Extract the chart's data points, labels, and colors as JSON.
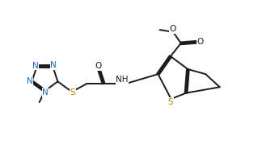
{
  "bg": "#ffffff",
  "lc": "#1a1a1a",
  "nc": "#1a6abf",
  "sc": "#b89000",
  "lw": 1.4,
  "fs": 7.5,
  "xlim": [
    0,
    9.5
  ],
  "ylim": [
    0,
    5.5
  ]
}
